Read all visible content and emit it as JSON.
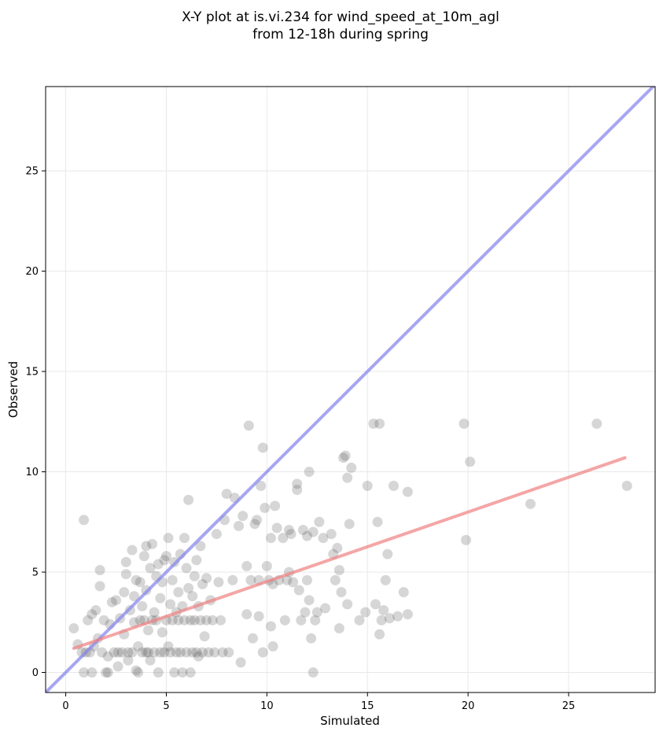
{
  "chart_data": {
    "type": "scatter",
    "title": [
      "X-Y plot at is.vi.234 for wind_speed_at_10m_agl",
      "from 12-18h during spring"
    ],
    "xlabel": "Simulated",
    "ylabel": "Observed",
    "xlim": [
      -1,
      29.3
    ],
    "ylim": [
      -1,
      29.2
    ],
    "xticks": [
      0,
      5,
      10,
      15,
      20,
      25
    ],
    "yticks": [
      0,
      5,
      10,
      15,
      20,
      25
    ],
    "grid": true,
    "point_color": "#444444",
    "identity_line_color": "#8888ee",
    "fit_line_color": "#f08080",
    "identity_line": {
      "from": [
        -1,
        -1
      ],
      "to": [
        29.3,
        29.3
      ]
    },
    "fit_line": {
      "from": [
        0.4,
        1.2
      ],
      "to": [
        27.8,
        10.7
      ]
    },
    "points": [
      [
        0.4,
        2.2
      ],
      [
        0.6,
        1.4
      ],
      [
        0.8,
        1.0
      ],
      [
        0.9,
        0.0
      ],
      [
        0.9,
        7.6
      ],
      [
        1.0,
        1.0
      ],
      [
        1.1,
        2.6
      ],
      [
        1.2,
        1.0
      ],
      [
        1.3,
        0.0
      ],
      [
        1.3,
        2.9
      ],
      [
        1.4,
        1.3
      ],
      [
        1.5,
        3.1
      ],
      [
        1.6,
        1.7
      ],
      [
        1.7,
        5.1
      ],
      [
        1.7,
        4.3
      ],
      [
        1.8,
        1.0
      ],
      [
        1.9,
        2.6
      ],
      [
        2.0,
        0.0
      ],
      [
        2.1,
        0.0
      ],
      [
        2.1,
        0.8
      ],
      [
        2.2,
        2.4
      ],
      [
        2.3,
        3.5
      ],
      [
        2.4,
        1.0
      ],
      [
        2.5,
        3.6
      ],
      [
        2.6,
        1.0
      ],
      [
        2.6,
        0.3
      ],
      [
        2.7,
        2.7
      ],
      [
        2.8,
        1.0
      ],
      [
        2.9,
        4.0
      ],
      [
        2.9,
        1.9
      ],
      [
        3.0,
        5.5
      ],
      [
        3.0,
        4.9
      ],
      [
        3.1,
        1.0
      ],
      [
        3.1,
        0.6
      ],
      [
        3.2,
        3.1
      ],
      [
        3.3,
        6.1
      ],
      [
        3.3,
        1.0
      ],
      [
        3.4,
        3.8
      ],
      [
        3.4,
        2.5
      ],
      [
        3.5,
        4.6
      ],
      [
        3.5,
        0.1
      ],
      [
        3.6,
        1.3
      ],
      [
        3.6,
        0.0
      ],
      [
        3.7,
        2.6
      ],
      [
        3.7,
        4.5
      ],
      [
        3.8,
        1.0
      ],
      [
        3.8,
        3.3
      ],
      [
        3.9,
        5.8
      ],
      [
        3.9,
        2.6
      ],
      [
        4.0,
        6.3
      ],
      [
        4.0,
        1.0
      ],
      [
        4.0,
        4.1
      ],
      [
        4.1,
        2.1
      ],
      [
        4.1,
        1.0
      ],
      [
        4.2,
        5.2
      ],
      [
        4.2,
        0.6
      ],
      [
        4.3,
        6.4
      ],
      [
        4.3,
        2.6
      ],
      [
        4.4,
        3.0
      ],
      [
        4.4,
        1.0
      ],
      [
        4.5,
        4.8
      ],
      [
        4.5,
        2.6
      ],
      [
        4.6,
        5.4
      ],
      [
        4.6,
        0.0
      ],
      [
        4.7,
        3.7
      ],
      [
        4.7,
        1.0
      ],
      [
        4.8,
        2.0
      ],
      [
        4.8,
        4.5
      ],
      [
        4.9,
        5.6
      ],
      [
        4.9,
        1.0
      ],
      [
        5.0,
        5.8
      ],
      [
        5.0,
        2.6
      ],
      [
        5.1,
        6.7
      ],
      [
        5.1,
        1.3
      ],
      [
        5.2,
        3.4
      ],
      [
        5.2,
        1.0
      ],
      [
        5.3,
        4.6
      ],
      [
        5.3,
        2.6
      ],
      [
        5.4,
        5.5
      ],
      [
        5.4,
        0.0
      ],
      [
        5.5,
        3.0
      ],
      [
        5.5,
        1.0
      ],
      [
        5.6,
        4.0
      ],
      [
        5.6,
        2.6
      ],
      [
        5.7,
        5.9
      ],
      [
        5.7,
        1.0
      ],
      [
        5.8,
        3.3
      ],
      [
        5.8,
        0.0
      ],
      [
        5.9,
        6.7
      ],
      [
        5.9,
        2.6
      ],
      [
        6.0,
        5.2
      ],
      [
        6.0,
        1.0
      ],
      [
        6.1,
        8.6
      ],
      [
        6.1,
        4.2
      ],
      [
        6.2,
        2.6
      ],
      [
        6.2,
        0.0
      ],
      [
        6.3,
        3.8
      ],
      [
        6.3,
        1.0
      ],
      [
        6.4,
        4.8
      ],
      [
        6.4,
        2.6
      ],
      [
        6.5,
        5.6
      ],
      [
        6.5,
        1.0
      ],
      [
        6.6,
        3.3
      ],
      [
        6.6,
        0.8
      ],
      [
        6.7,
        6.3
      ],
      [
        6.7,
        2.6
      ],
      [
        6.8,
        4.4
      ],
      [
        6.8,
        1.0
      ],
      [
        6.9,
        1.8
      ],
      [
        7.0,
        4.7
      ],
      [
        7.0,
        2.6
      ],
      [
        7.1,
        1.0
      ],
      [
        7.2,
        3.6
      ],
      [
        7.3,
        2.6
      ],
      [
        7.4,
        1.0
      ],
      [
        7.5,
        6.9
      ],
      [
        7.6,
        4.5
      ],
      [
        7.7,
        2.6
      ],
      [
        7.8,
        1.0
      ],
      [
        7.9,
        7.6
      ],
      [
        8.0,
        8.9
      ],
      [
        8.1,
        1.0
      ],
      [
        8.3,
        4.6
      ],
      [
        8.4,
        8.7
      ],
      [
        8.6,
        7.3
      ],
      [
        8.7,
        0.5
      ],
      [
        8.8,
        7.8
      ],
      [
        9.0,
        2.9
      ],
      [
        9.0,
        5.3
      ],
      [
        9.1,
        12.3
      ],
      [
        9.2,
        4.6
      ],
      [
        9.3,
        1.7
      ],
      [
        9.4,
        7.4
      ],
      [
        9.5,
        7.6
      ],
      [
        9.6,
        2.8
      ],
      [
        9.6,
        4.6
      ],
      [
        9.7,
        9.3
      ],
      [
        9.8,
        11.2
      ],
      [
        9.8,
        1.0
      ],
      [
        9.9,
        8.2
      ],
      [
        10.0,
        5.3
      ],
      [
        10.1,
        4.6
      ],
      [
        10.2,
        6.7
      ],
      [
        10.2,
        2.3
      ],
      [
        10.3,
        4.4
      ],
      [
        10.3,
        1.3
      ],
      [
        10.4,
        8.3
      ],
      [
        10.5,
        7.2
      ],
      [
        10.6,
        4.6
      ],
      [
        10.8,
        6.7
      ],
      [
        10.9,
        2.6
      ],
      [
        11.0,
        4.6
      ],
      [
        11.1,
        5.0
      ],
      [
        11.1,
        7.1
      ],
      [
        11.2,
        6.9
      ],
      [
        11.3,
        4.5
      ],
      [
        11.5,
        9.1
      ],
      [
        11.5,
        9.4
      ],
      [
        11.6,
        4.1
      ],
      [
        11.7,
        2.6
      ],
      [
        11.8,
        7.1
      ],
      [
        11.9,
        3.0
      ],
      [
        12.0,
        4.6
      ],
      [
        12.0,
        6.8
      ],
      [
        12.1,
        10.0
      ],
      [
        12.1,
        3.6
      ],
      [
        12.2,
        1.7
      ],
      [
        12.3,
        0.0
      ],
      [
        12.3,
        7.0
      ],
      [
        12.4,
        2.6
      ],
      [
        12.5,
        3.0
      ],
      [
        12.6,
        7.5
      ],
      [
        12.8,
        6.7
      ],
      [
        12.9,
        3.2
      ],
      [
        13.2,
        6.9
      ],
      [
        13.3,
        5.9
      ],
      [
        13.4,
        4.6
      ],
      [
        13.5,
        6.2
      ],
      [
        13.6,
        5.1
      ],
      [
        13.6,
        2.2
      ],
      [
        13.7,
        4.0
      ],
      [
        13.8,
        10.7
      ],
      [
        13.9,
        10.8
      ],
      [
        14.0,
        9.7
      ],
      [
        14.0,
        3.4
      ],
      [
        14.1,
        7.4
      ],
      [
        14.2,
        10.2
      ],
      [
        14.6,
        2.6
      ],
      [
        14.9,
        3.0
      ],
      [
        15.0,
        9.3
      ],
      [
        15.3,
        12.4
      ],
      [
        15.4,
        3.4
      ],
      [
        15.5,
        7.5
      ],
      [
        15.6,
        12.4
      ],
      [
        15.6,
        1.9
      ],
      [
        15.7,
        2.6
      ],
      [
        15.8,
        3.1
      ],
      [
        15.9,
        4.6
      ],
      [
        16.0,
        5.9
      ],
      [
        16.1,
        2.7
      ],
      [
        16.3,
        9.3
      ],
      [
        16.5,
        2.8
      ],
      [
        16.8,
        4.0
      ],
      [
        17.0,
        9.0
      ],
      [
        17.0,
        2.9
      ],
      [
        19.8,
        12.4
      ],
      [
        19.9,
        6.6
      ],
      [
        20.1,
        10.5
      ],
      [
        23.1,
        8.4
      ],
      [
        26.4,
        12.4
      ],
      [
        27.9,
        9.3
      ]
    ]
  }
}
